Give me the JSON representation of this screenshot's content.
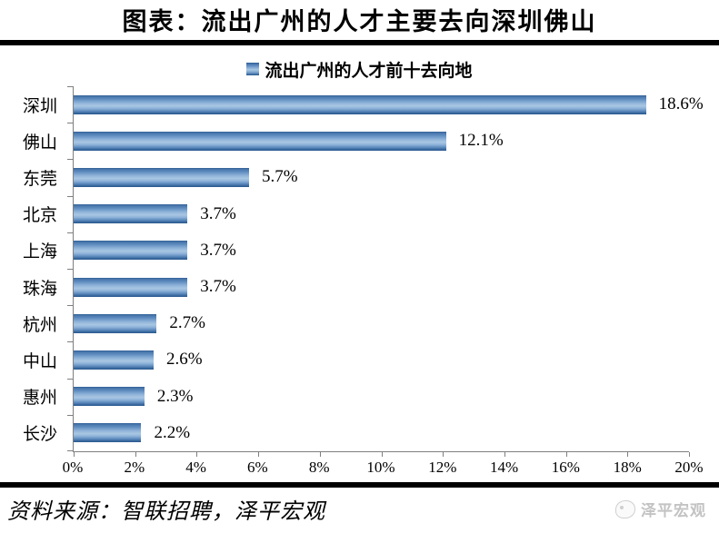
{
  "header": {
    "title": "图表：流出广州的人才主要去向深圳佛山"
  },
  "chart_data": {
    "type": "bar",
    "orientation": "horizontal",
    "title": "流出广州的人才前十去向地",
    "legend": "流出广州的人才前十去向地",
    "legend_position": "top",
    "categories": [
      "深圳",
      "佛山",
      "东莞",
      "北京",
      "上海",
      "珠海",
      "杭州",
      "中山",
      "惠州",
      "长沙"
    ],
    "values": [
      18.6,
      12.1,
      5.7,
      3.7,
      3.7,
      3.7,
      2.7,
      2.6,
      2.3,
      2.2
    ],
    "data_labels": [
      "18.6%",
      "12.1%",
      "5.7%",
      "3.7%",
      "3.7%",
      "3.7%",
      "2.7%",
      "2.6%",
      "2.3%",
      "2.2%"
    ],
    "xlim": [
      0,
      20
    ],
    "x_tick_labels": [
      "0%",
      "2%",
      "4%",
      "6%",
      "8%",
      "10%",
      "12%",
      "14%",
      "16%",
      "18%",
      "20%"
    ],
    "grid": false,
    "bar_color": "#4f81bd",
    "bar_color_light": "#a9c7e3",
    "axis_color": "#7f7f7f"
  },
  "footer": {
    "source": "资料来源：智联招聘，泽平宏观",
    "watermark": "泽平宏观"
  },
  "colors": {
    "divider": "#000000",
    "watermark_gray": "#c3c3c3"
  }
}
